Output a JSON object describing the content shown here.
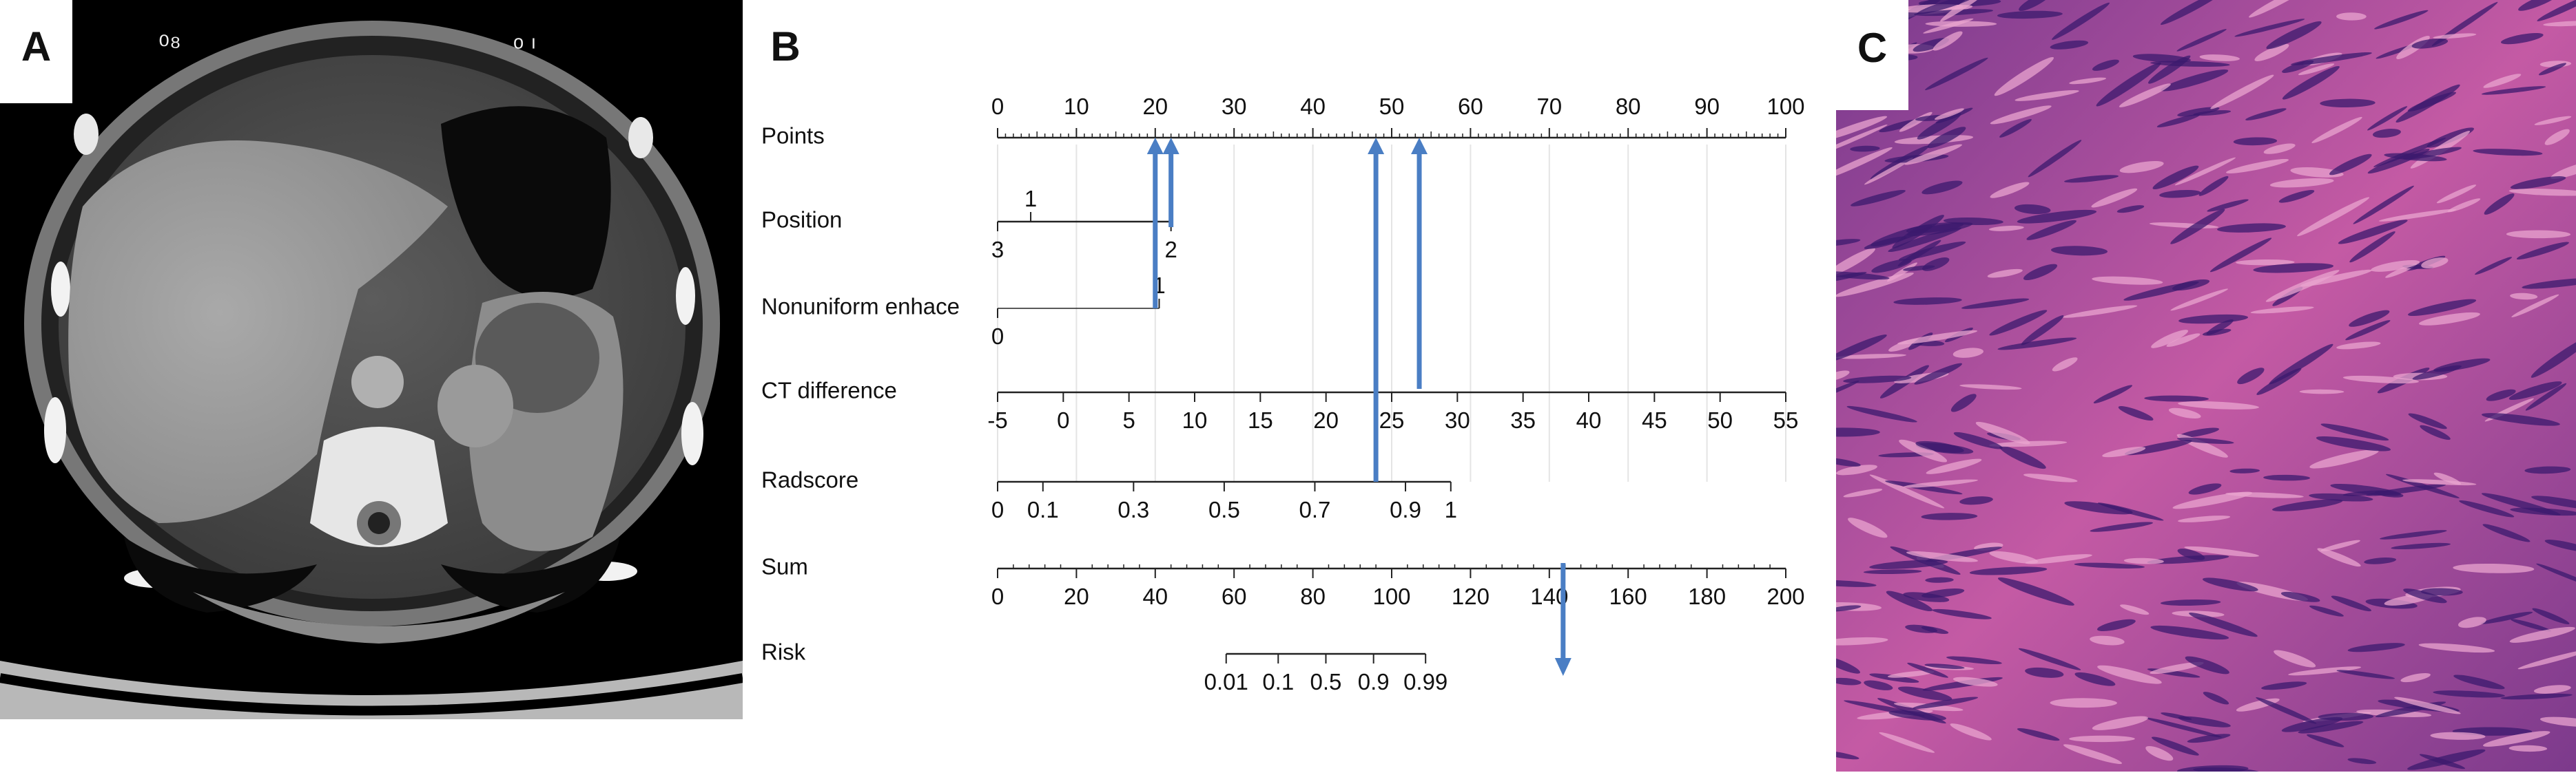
{
  "panels": {
    "a": {
      "label": "A"
    },
    "b": {
      "label": "B"
    },
    "c": {
      "label": "C"
    }
  },
  "nomogram": {
    "colors": {
      "arrow": "#4a7ec4",
      "axis": "#222222",
      "grid": "#e4e4e4"
    },
    "rows": [
      {
        "key": "points",
        "label": "Points",
        "ticks": [
          {
            "v": 0,
            "t": "0"
          },
          {
            "v": 10,
            "t": "10"
          },
          {
            "v": 20,
            "t": "20"
          },
          {
            "v": 30,
            "t": "30"
          },
          {
            "v": 40,
            "t": "40"
          },
          {
            "v": 50,
            "t": "50"
          },
          {
            "v": 60,
            "t": "60"
          },
          {
            "v": 70,
            "t": "70"
          },
          {
            "v": 80,
            "t": "80"
          },
          {
            "v": 90,
            "t": "90"
          },
          {
            "v": 100,
            "t": "100"
          }
        ],
        "minor_step": 1
      },
      {
        "key": "position",
        "label": "Position",
        "top_ticks": [
          {
            "v": 4.2,
            "t": "1"
          }
        ],
        "bottom_ticks": [
          {
            "v": 0,
            "t": "3"
          },
          {
            "v": 22,
            "t": "2"
          }
        ]
      },
      {
        "key": "nonuniform",
        "label": "Nonuniform enhace",
        "top_ticks": [
          {
            "v": 20.5,
            "t": "1"
          }
        ],
        "bottom_ticks": [
          {
            "v": 0,
            "t": "0"
          }
        ]
      },
      {
        "key": "ct_difference",
        "label": "CT difference",
        "ticks": [
          {
            "v": -5,
            "t": "-5"
          },
          {
            "v": 0,
            "t": "0"
          },
          {
            "v": 5,
            "t": "5"
          },
          {
            "v": 10,
            "t": "10"
          },
          {
            "v": 15,
            "t": "15"
          },
          {
            "v": 20,
            "t": "20"
          },
          {
            "v": 25,
            "t": "25"
          },
          {
            "v": 30,
            "t": "30"
          },
          {
            "v": 35,
            "t": "35"
          },
          {
            "v": 40,
            "t": "40"
          },
          {
            "v": 45,
            "t": "45"
          },
          {
            "v": 50,
            "t": "50"
          },
          {
            "v": 55,
            "t": "55"
          }
        ]
      },
      {
        "key": "radscore",
        "label": "Radscore",
        "ticks": [
          {
            "v": 0,
            "t": "0"
          },
          {
            "v": 0.1,
            "t": "0.1"
          },
          {
            "v": 0.3,
            "t": "0.3"
          },
          {
            "v": 0.5,
            "t": "0.5"
          },
          {
            "v": 0.7,
            "t": "0.7"
          },
          {
            "v": 0.9,
            "t": "0.9"
          },
          {
            "v": 1,
            "t": "1"
          }
        ]
      },
      {
        "key": "sum",
        "label": "Sum",
        "ticks": [
          {
            "v": 0,
            "t": "0"
          },
          {
            "v": 20,
            "t": "20"
          },
          {
            "v": 40,
            "t": "40"
          },
          {
            "v": 60,
            "t": "60"
          },
          {
            "v": 80,
            "t": "80"
          },
          {
            "v": 100,
            "t": "100"
          },
          {
            "v": 120,
            "t": "120"
          },
          {
            "v": 140,
            "t": "140"
          },
          {
            "v": 160,
            "t": "160"
          },
          {
            "v": 180,
            "t": "180"
          },
          {
            "v": 200,
            "t": "200"
          }
        ],
        "minor_step": 4
      },
      {
        "key": "risk",
        "label": "Risk",
        "ticks": [
          {
            "v": 0.01,
            "t": "0.01"
          },
          {
            "v": 0.1,
            "t": "0.1"
          },
          {
            "v": 0.5,
            "t": "0.5"
          },
          {
            "v": 0.9,
            "t": "0.9"
          },
          {
            "v": 0.99,
            "t": "0.99"
          }
        ]
      }
    ],
    "arrows_points": [
      20,
      22,
      48,
      53.5
    ],
    "arrow_sum": 143.5
  }
}
